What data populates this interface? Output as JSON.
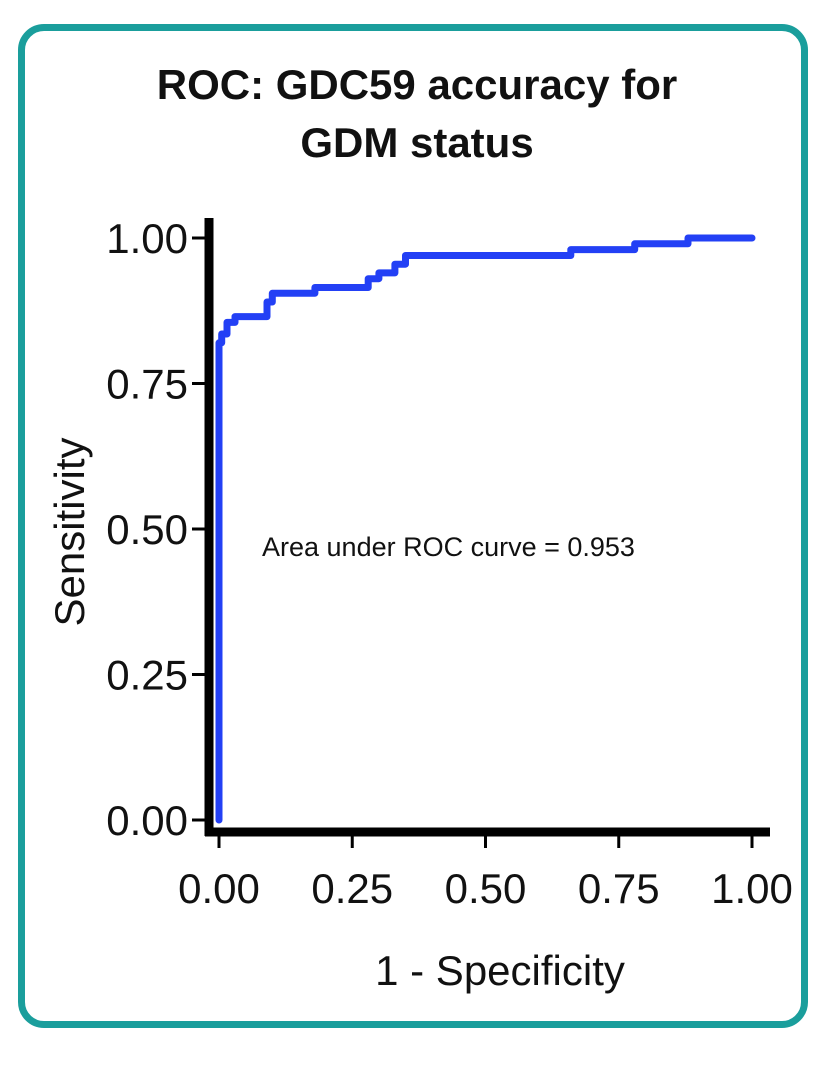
{
  "chart_data": {
    "type": "line",
    "title_lines": [
      "ROC: GDC59 accuracy for",
      "GDM status"
    ],
    "xlabel": "1 - Specificity",
    "ylabel": "Sensitivity",
    "xlim": [
      0,
      1
    ],
    "ylim": [
      0,
      1
    ],
    "x_ticks": [
      "0.00",
      "0.25",
      "0.50",
      "0.75",
      "1.00"
    ],
    "y_ticks": [
      "0.00",
      "0.25",
      "0.50",
      "0.75",
      "1.00"
    ],
    "grid": false,
    "line_color": "#2340f5",
    "annotation": "Area under ROC curve = 0.953",
    "series": [
      {
        "x": [
          0,
          0,
          0,
          0.005,
          0.005,
          0.015,
          0.015,
          0.03,
          0.03,
          0.09,
          0.09,
          0.1,
          0.1,
          0.18,
          0.18,
          0.28,
          0.28,
          0.3,
          0.3,
          0.33,
          0.33,
          0.35,
          0.35,
          0.66,
          0.66,
          0.78,
          0.78,
          0.88,
          0.88,
          1.0
        ],
        "y": [
          0,
          0.66,
          0.82,
          0.82,
          0.835,
          0.835,
          0.855,
          0.855,
          0.865,
          0.865,
          0.89,
          0.89,
          0.905,
          0.905,
          0.915,
          0.915,
          0.93,
          0.93,
          0.94,
          0.94,
          0.955,
          0.955,
          0.97,
          0.97,
          0.98,
          0.98,
          0.99,
          0.99,
          1.0,
          1.0
        ]
      }
    ]
  }
}
